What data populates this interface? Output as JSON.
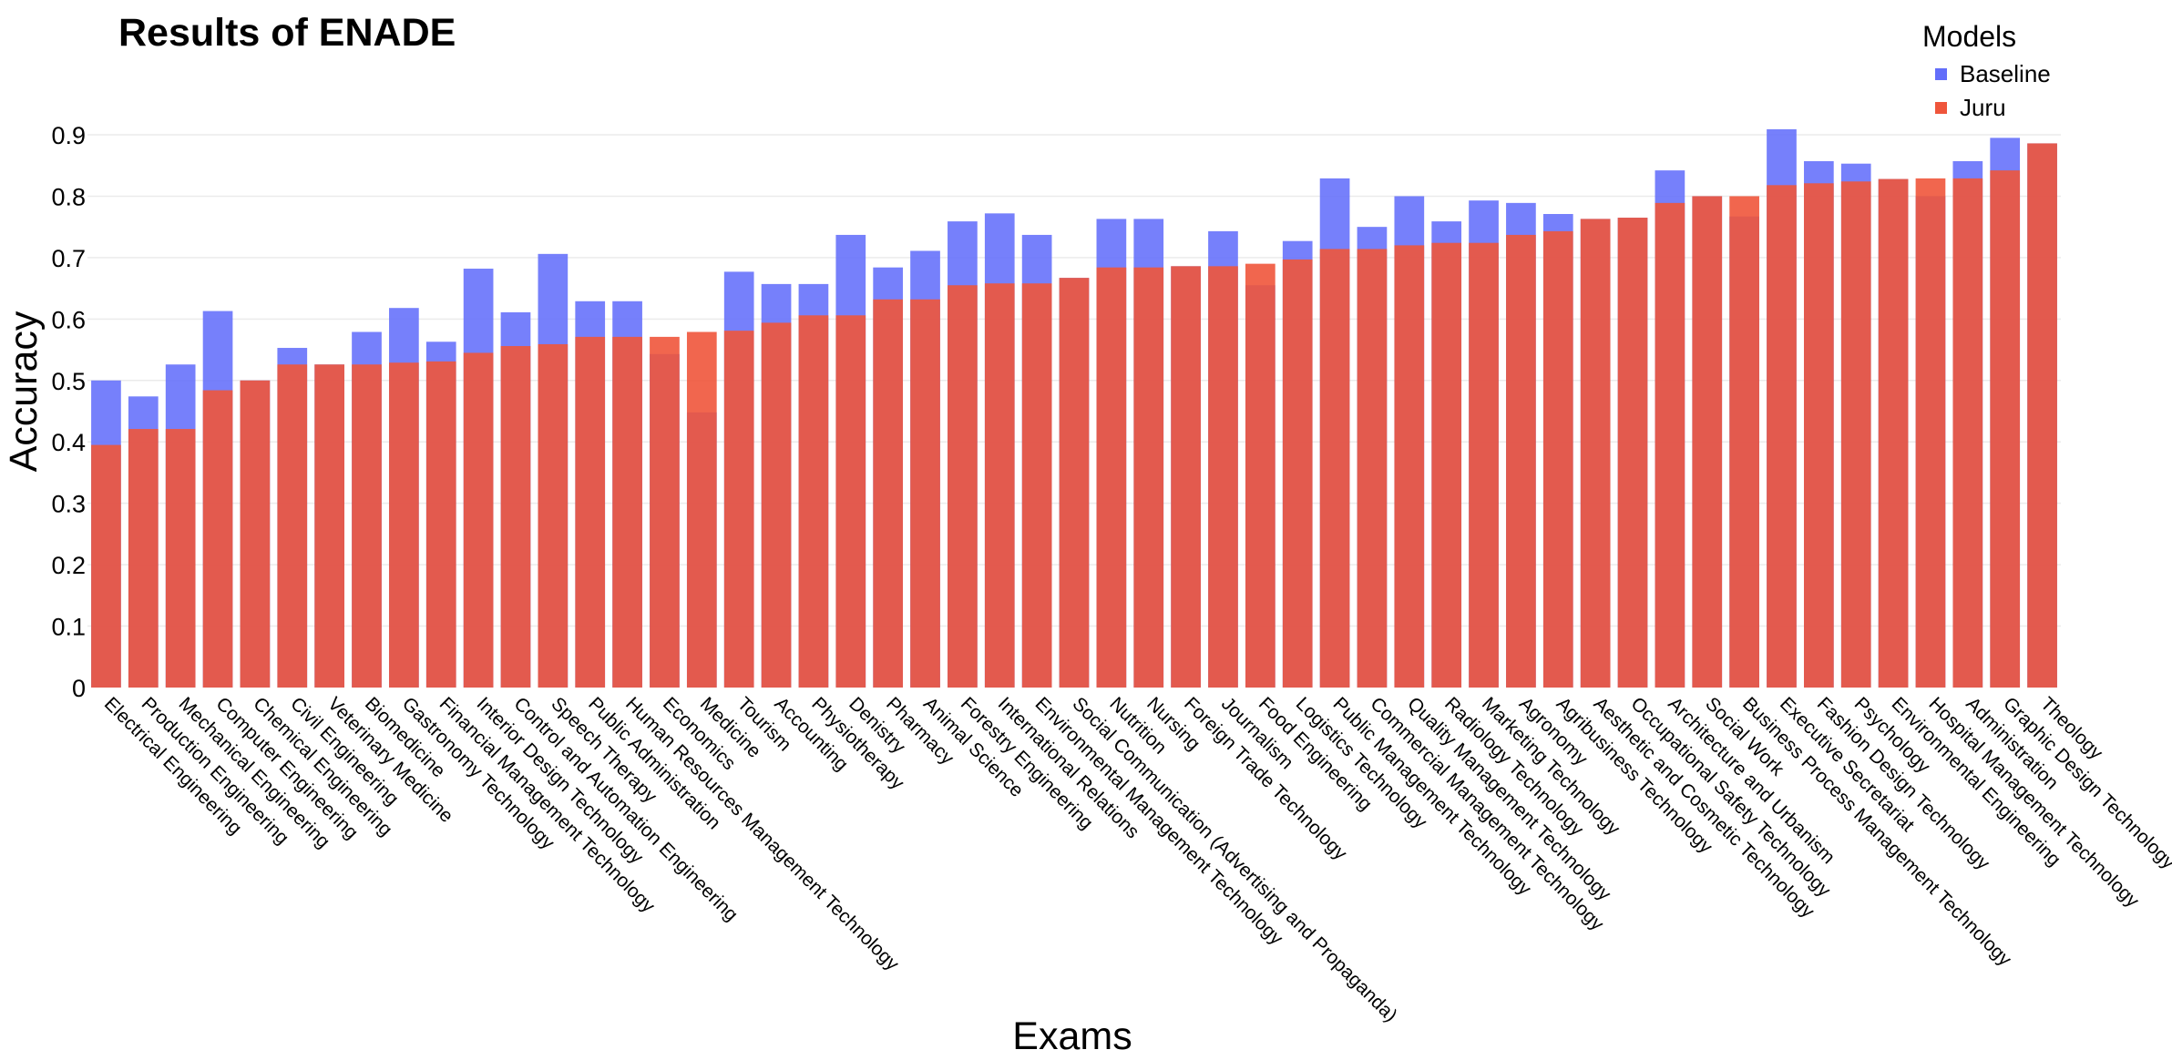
{
  "chart_data": {
    "type": "bar",
    "title": "Results of ENADE",
    "xlabel": "Exams",
    "ylabel": "Accuracy",
    "ylim": [
      0,
      0.9
    ],
    "yticks": [
      0,
      0.1,
      0.2,
      0.3,
      0.4,
      0.5,
      0.6,
      0.7,
      0.8,
      0.9
    ],
    "grid": true,
    "barmode": "overlay",
    "legend": {
      "title": "Models",
      "placement": "top-right"
    },
    "categories": [
      "Electrical Engineering",
      "Production Engineering",
      "Mechanical Engineering",
      "Computer Engineering",
      "Chemical Engineering",
      "Civil Engineering",
      "Veterinary Medicine",
      "Biomedicine",
      "Gastronomy Technology",
      "Financial Management Technology",
      "Interior Design Technology",
      "Control and Automation Engineering",
      "Speech Therapy",
      "Public Administration",
      "Human Resources Management Technology",
      "Economics",
      "Medicine",
      "Tourism",
      "Accounting",
      "Physiotherapy",
      "Denistry",
      "Pharmacy",
      "Animal Science",
      "Forestry Engineering",
      "International Relations",
      "Environmental Management Technology",
      "Social Communication (Advertising and Propaganda)",
      "Nutrition",
      "Nursing",
      "Foreign Trade Technology",
      "Journalism",
      "Food Engineering",
      "Logistics Technology",
      "Public Management Technology",
      "Commercial Management Technology",
      "Quality Management Technology",
      "Radiology Technology",
      "Marketing Technology",
      "Agronomy",
      "Agribusiness Technology",
      "Aesthetic and Cosmetic Technology",
      "Occupational Safety Technology",
      "Architecture and Urbanism",
      "Social Work",
      "Business Process Management Technology",
      "Executive Secretariat",
      "Fashion Design Technology",
      "Psychology",
      "Environmental Engineering",
      "Hospital Management Technology",
      "Administration",
      "Graphic Design Technology",
      "Theology"
    ],
    "series": [
      {
        "name": "Baseline",
        "color": "#636efa",
        "values": [
          0.5,
          0.474,
          0.526,
          0.613,
          0.5,
          0.553,
          0.526,
          0.579,
          0.618,
          0.563,
          0.682,
          0.611,
          0.706,
          0.629,
          0.629,
          0.543,
          0.448,
          0.677,
          0.657,
          0.657,
          0.737,
          0.684,
          0.711,
          0.759,
          0.772,
          0.737,
          0.667,
          0.763,
          0.763,
          0.686,
          0.743,
          0.655,
          0.727,
          0.829,
          0.75,
          0.8,
          0.759,
          0.793,
          0.789,
          0.771,
          0.763,
          0.765,
          0.842,
          0.8,
          0.767,
          0.909,
          0.857,
          0.853,
          0.828,
          0.8,
          0.857,
          0.895,
          0.886
        ]
      },
      {
        "name": "Juru",
        "color": "#ef553b",
        "values": [
          0.395,
          0.421,
          0.421,
          0.484,
          0.5,
          0.526,
          0.526,
          0.526,
          0.529,
          0.531,
          0.545,
          0.556,
          0.559,
          0.571,
          0.571,
          0.571,
          0.579,
          0.581,
          0.594,
          0.606,
          0.606,
          0.632,
          0.632,
          0.655,
          0.658,
          0.658,
          0.667,
          0.684,
          0.684,
          0.686,
          0.686,
          0.69,
          0.697,
          0.714,
          0.714,
          0.72,
          0.724,
          0.724,
          0.737,
          0.743,
          0.763,
          0.765,
          0.789,
          0.8,
          0.8,
          0.818,
          0.821,
          0.824,
          0.828,
          0.829,
          0.829,
          0.842,
          0.886
        ]
      }
    ]
  }
}
